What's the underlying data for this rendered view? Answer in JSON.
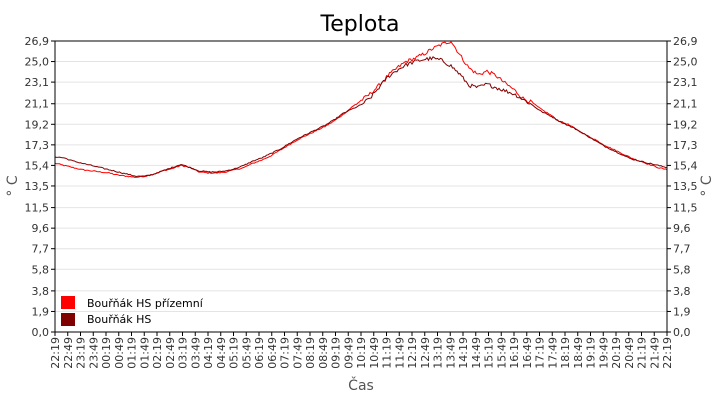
{
  "chart_data": {
    "type": "line",
    "title": "Teplota",
    "xlabel": "Čas",
    "ylabel": "° C",
    "ylabel_right": "° C",
    "y_ticks": [
      "0,0",
      "1,9",
      "3,8",
      "5,8",
      "7,7",
      "9,6",
      "11,5",
      "13,5",
      "15,4",
      "17,3",
      "19,2",
      "21,1",
      "23,1",
      "25,0",
      "26,9"
    ],
    "ylim": [
      0,
      26.9
    ],
    "x_ticks": [
      "22:19",
      "22:49",
      "23:19",
      "23:49",
      "00:19",
      "00:49",
      "01:19",
      "01:49",
      "02:19",
      "02:49",
      "03:19",
      "03:49",
      "04:19",
      "04:49",
      "05:19",
      "05:49",
      "06:19",
      "06:49",
      "07:19",
      "07:49",
      "08:19",
      "08:49",
      "09:19",
      "09:49",
      "10:19",
      "10:49",
      "11:19",
      "11:49",
      "12:19",
      "12:49",
      "13:19",
      "13:49",
      "14:19",
      "14:49",
      "15:19",
      "15:49",
      "16:19",
      "16:49",
      "17:19",
      "17:49",
      "18:19",
      "18:49",
      "19:19",
      "19:49",
      "20:19",
      "20:49",
      "21:19",
      "21:49",
      "22:19"
    ],
    "grid": true,
    "legend_position": "bottom-left",
    "series": [
      {
        "name": "Bouřňák HS přízemní",
        "color": "#ff0000",
        "values": [
          15.6,
          15.4,
          15.2,
          15.0,
          14.9,
          14.8,
          14.7,
          14.5,
          14.4,
          14.3,
          14.4,
          14.6,
          14.9,
          15.1,
          15.4,
          15.2,
          14.8,
          14.7,
          14.7,
          14.8,
          15.0,
          15.2,
          15.6,
          15.9,
          16.3,
          16.8,
          17.3,
          17.8,
          18.2,
          18.6,
          19.0,
          19.5,
          20.1,
          20.8,
          21.4,
          22.0,
          22.8,
          23.7,
          24.4,
          25.0,
          25.3,
          25.7,
          26.2,
          26.6,
          26.9,
          25.6,
          24.4,
          23.8,
          24.1,
          23.7,
          23.0,
          22.4,
          21.6,
          21.2,
          20.6,
          20.1,
          19.5,
          19.2,
          18.7,
          18.2,
          17.8,
          17.3,
          16.9,
          16.5,
          16.1,
          15.8,
          15.5,
          15.2,
          15.0
        ]
      },
      {
        "name": "Bouřňák HS",
        "color": "#800000",
        "values": [
          16.2,
          16.1,
          15.8,
          15.6,
          15.4,
          15.2,
          15.0,
          14.8,
          14.6,
          14.4,
          14.4,
          14.6,
          14.9,
          15.2,
          15.5,
          15.2,
          14.9,
          14.8,
          14.8,
          14.9,
          15.1,
          15.4,
          15.8,
          16.1,
          16.5,
          16.9,
          17.4,
          17.9,
          18.3,
          18.7,
          19.1,
          19.6,
          20.2,
          20.6,
          21.0,
          21.6,
          22.6,
          23.6,
          24.2,
          24.7,
          25.0,
          25.2,
          25.3,
          25.1,
          24.6,
          23.8,
          22.8,
          22.6,
          22.9,
          22.6,
          22.3,
          22.0,
          21.5,
          21.0,
          20.4,
          20.0,
          19.5,
          19.1,
          18.7,
          18.2,
          17.7,
          17.2,
          16.8,
          16.4,
          16.0,
          15.8,
          15.6,
          15.4,
          15.2
        ]
      }
    ]
  }
}
